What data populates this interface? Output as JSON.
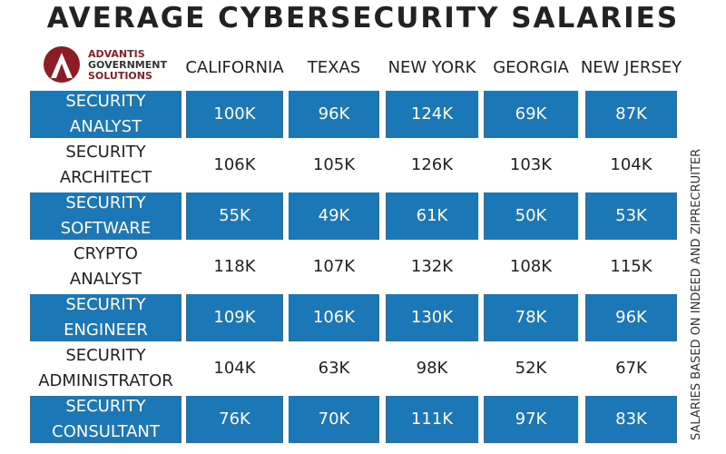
{
  "header": {
    "title": "AVERAGE CYBERSECURITY SALARIES",
    "logo": [
      "ADVANTIS",
      "GOVERNMENT",
      "SOLUTIONS"
    ]
  },
  "table": {
    "columns": [
      "CALIFORNIA",
      "TEXAS",
      "NEW YORK",
      "GEORGIA",
      "NEW JERSEY"
    ],
    "rows": [
      {
        "role": [
          "SECURITY",
          "ANALYST"
        ],
        "values": [
          "100K",
          "96K",
          "124K",
          "69K",
          "87K"
        ]
      },
      {
        "role": [
          "SECURITY",
          "ARCHITECT"
        ],
        "values": [
          "106K",
          "105K",
          "126K",
          "103K",
          "104K"
        ]
      },
      {
        "role": [
          "SECURITY",
          "SOFTWARE"
        ],
        "values": [
          "55K",
          "49K",
          "61K",
          "50K",
          "53K"
        ]
      },
      {
        "role": [
          "CRYPTO",
          "ANALYST"
        ],
        "values": [
          "118K",
          "107K",
          "132K",
          "108K",
          "115K"
        ]
      },
      {
        "role": [
          "SECURITY",
          "ENGINEER"
        ],
        "values": [
          "109K",
          "106K",
          "130K",
          "78K",
          "96K"
        ]
      },
      {
        "role": [
          "SECURITY",
          "ADMINISTRATOR"
        ],
        "values": [
          "104K",
          "63K",
          "98K",
          "52K",
          "67K"
        ]
      },
      {
        "role": [
          "SECURITY",
          "CONSULTANT"
        ],
        "values": [
          "76K",
          "70K",
          "111K",
          "97K",
          "83K"
        ]
      }
    ]
  },
  "note": "SALARIES BASED ON INDEED AND ZIPRECRUITER"
}
